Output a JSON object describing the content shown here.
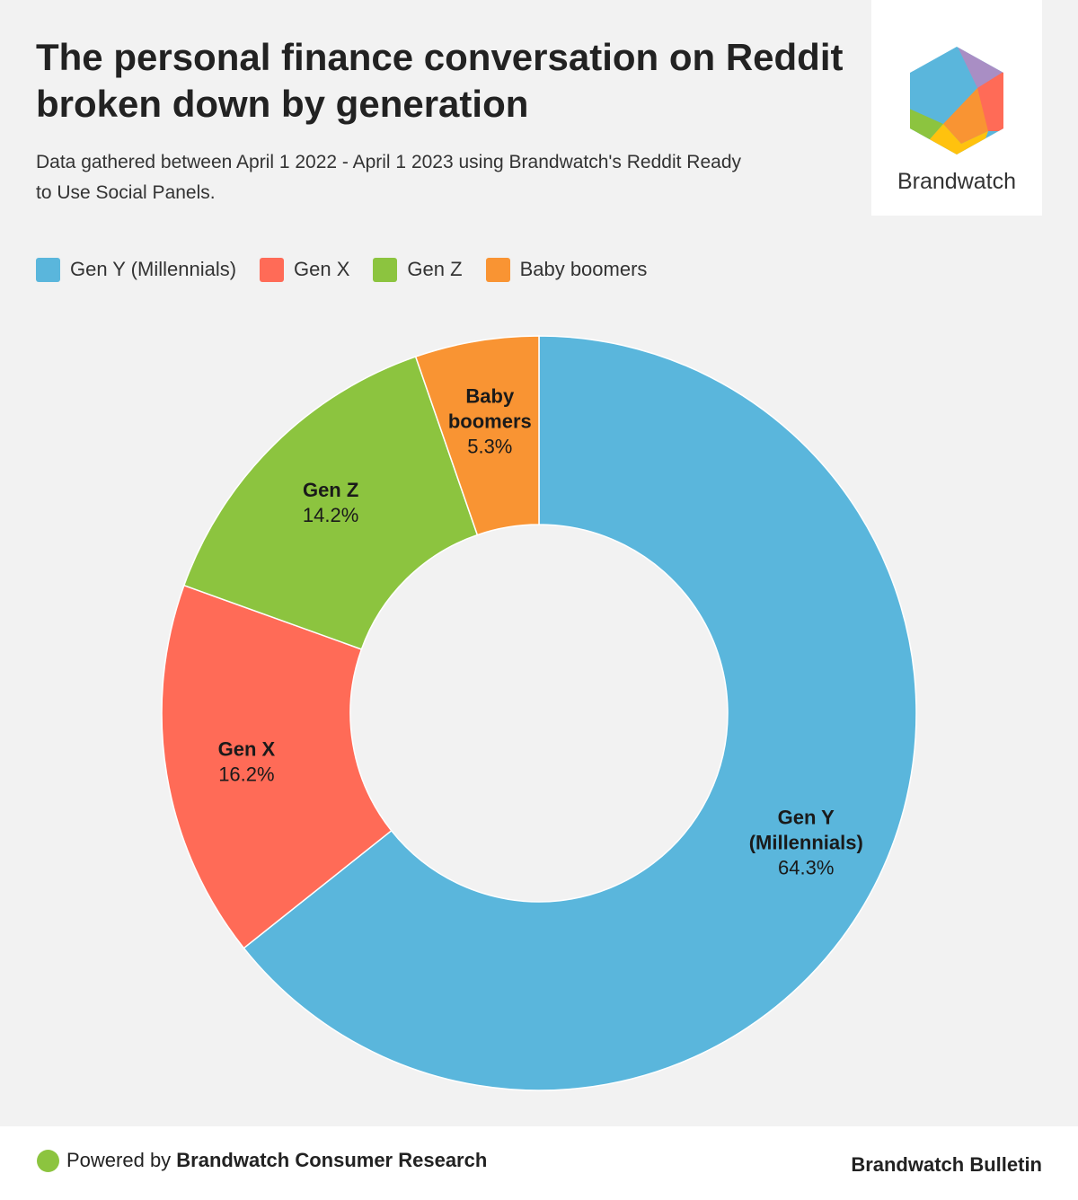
{
  "header": {
    "title_lines": [
      "The personal finance conversation on Reddit",
      "broken down by generation"
    ],
    "subtitle_lines": [
      "Data gathered between April 1 2022 - April 1 2023 using Brandwatch's Reddit Ready",
      "to Use Social Panels."
    ]
  },
  "logo": {
    "text": "Brandwatch",
    "icon": "brandwatch-hexagon-logo"
  },
  "chart_data": {
    "type": "pie",
    "variant": "donut",
    "start": "top",
    "direction": "clockwise",
    "legend_position": "top-left",
    "series": [
      {
        "name": "Gen Y (Millennials)",
        "label_lines": [
          "Gen Y",
          "(Millennials)"
        ],
        "value": 64.3,
        "value_label": "64.3%",
        "color": "#5ab6dc"
      },
      {
        "name": "Gen X",
        "label_lines": [
          "Gen X"
        ],
        "value": 16.2,
        "value_label": "16.2%",
        "color": "#ff6b57"
      },
      {
        "name": "Gen Z",
        "label_lines": [
          "Gen Z"
        ],
        "value": 14.2,
        "value_label": "14.2%",
        "color": "#8cc43f"
      },
      {
        "name": "Baby boomers",
        "label_lines": [
          "Baby",
          "boomers"
        ],
        "value": 5.3,
        "value_label": "5.3%",
        "color": "#f99433"
      }
    ]
  },
  "footer": {
    "powered_prefix": "Powered by ",
    "powered_brand": "Brandwatch Consumer Research",
    "right_text": "Brandwatch Bulletin",
    "dot_color": "#8cc43f"
  }
}
